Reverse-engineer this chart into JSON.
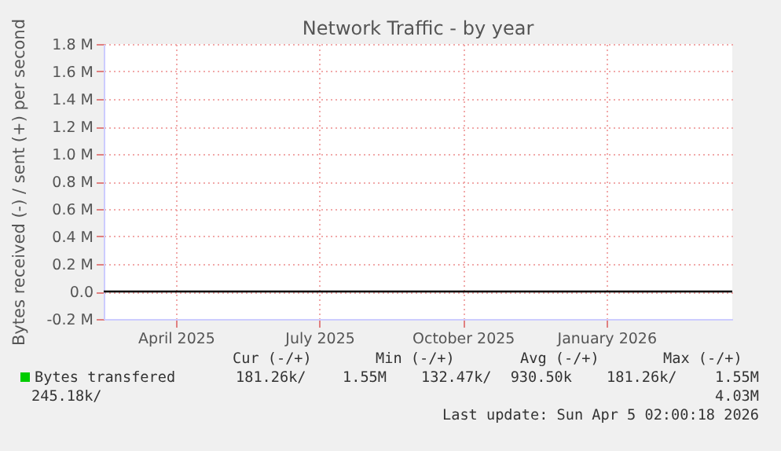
{
  "chart_data": {
    "type": "line",
    "title": "Network Traffic - by year",
    "ylabel": "Bytes received (-) / sent (+) per second",
    "categories": [
      "April 2025",
      "July 2025",
      "October 2025",
      "January 2026"
    ],
    "ylim": [
      -200000,
      1800000
    ],
    "yticks": [
      {
        "value": -200000,
        "label": "-0.2 M"
      },
      {
        "value": 0,
        "label": "0.0"
      },
      {
        "value": 200000,
        "label": "0.2 M"
      },
      {
        "value": 400000,
        "label": "0.4 M"
      },
      {
        "value": 600000,
        "label": "0.6 M"
      },
      {
        "value": 800000,
        "label": "0.8 M"
      },
      {
        "value": 1000000,
        "label": "1.0 M"
      },
      {
        "value": 1200000,
        "label": "1.2 M"
      },
      {
        "value": 1400000,
        "label": "1.4 M"
      },
      {
        "value": 1600000,
        "label": "1.6 M"
      },
      {
        "value": 1800000,
        "label": "1.8 M"
      }
    ],
    "series": [
      {
        "name": "Bytes transfered",
        "color": "#00cc00",
        "values": [
          null,
          null,
          null,
          null
        ]
      }
    ],
    "ref_lines": [
      {
        "axis": "y",
        "value": 0,
        "color": "#000000"
      }
    ],
    "grid": true,
    "legend": "bottom left",
    "annotations": [
      "Cur (-/+)",
      "Min (-/+)",
      "Avg (-/+)",
      "Max (-/+)",
      "181.26k/",
      "1.55M",
      "132.47k/",
      "930.50k",
      "181.26k/",
      "1.55M",
      "245.18k/",
      "4.03M",
      "Last update: Sun Apr  5 02:00:18 2026"
    ]
  }
}
